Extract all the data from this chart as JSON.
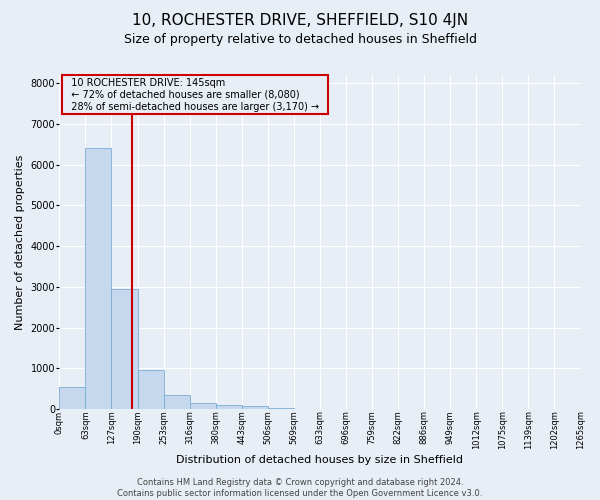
{
  "title": "10, ROCHESTER DRIVE, SHEFFIELD, S10 4JN",
  "subtitle": "Size of property relative to detached houses in Sheffield",
  "xlabel": "Distribution of detached houses by size in Sheffield",
  "ylabel": "Number of detached properties",
  "bar_values": [
    550,
    6400,
    2950,
    950,
    350,
    155,
    100,
    75,
    20,
    10,
    5,
    3,
    2,
    1,
    0,
    0,
    0,
    0,
    0,
    0
  ],
  "bin_labels": [
    "0sqm",
    "63sqm",
    "127sqm",
    "190sqm",
    "253sqm",
    "316sqm",
    "380sqm",
    "443sqm",
    "506sqm",
    "569sqm",
    "633sqm",
    "696sqm",
    "759sqm",
    "822sqm",
    "886sqm",
    "949sqm",
    "1012sqm",
    "1075sqm",
    "1139sqm",
    "1202sqm",
    "1265sqm"
  ],
  "bar_color": "#c5d8ee",
  "bar_edge_color": "#7aadd4",
  "vline_color": "#cc0000",
  "vline_x": 2.285,
  "ylim": [
    0,
    8200
  ],
  "yticks": [
    0,
    1000,
    2000,
    3000,
    4000,
    5000,
    6000,
    7000,
    8000
  ],
  "annotation_text": "  10 ROCHESTER DRIVE: 145sqm  \n  ← 72% of detached houses are smaller (8,080)  \n  28% of semi-detached houses are larger (3,170) →  ",
  "annotation_box_color": "#cc0000",
  "footer_text": "Contains HM Land Registry data © Crown copyright and database right 2024.\nContains public sector information licensed under the Open Government Licence v3.0.",
  "background_color": "#e8eef5",
  "grid_color": "#ffffff",
  "title_fontsize": 11,
  "subtitle_fontsize": 9,
  "xlabel_fontsize": 8,
  "ylabel_fontsize": 8,
  "annotation_fontsize": 7,
  "footer_fontsize": 6
}
